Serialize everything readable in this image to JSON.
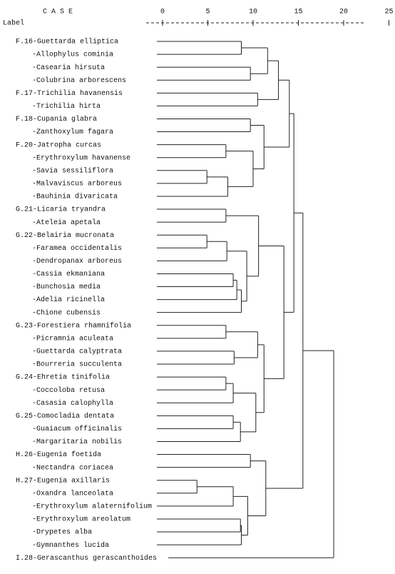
{
  "header": {
    "case": "C A S E",
    "label": "Label"
  },
  "axis": {
    "ticks": [
      0,
      5,
      10,
      15,
      20,
      25
    ]
  },
  "leaves": [
    "F.16-Guettarda elliptica",
    "-Allophylus cominia",
    "-Casearia hirsuta",
    "-Colubrina arborescens",
    "F.17-Trichilia havanensis",
    "-Trichilia hirta",
    "F.18-Cupania glabra",
    "-Zanthoxylum fagara",
    "F.20-Jatropha curcas",
    "-Erythroxylum havanense",
    "-Savia sessiliflora",
    "-Malvaviscus arboreus",
    "-Bauhinia divaricata",
    "G.21-Licaria tryandra",
    "-Ateleia apetala",
    "G.22-Belairia mucronata",
    "-Faramea occidentalis",
    "-Dendropanax arboreus",
    "-Cassia ekmaniana",
    "-Bunchosia media",
    "-Adelia ricinella",
    "-Chione cubensis",
    "G.23-Forestiera rhamnifolia",
    "-Picramnia aculeata",
    "-Guettarda calyptrata",
    "-Bourreria succulenta",
    "G.24-Ehretia tinifolia",
    "-Coccoloba retusa",
    "-Casasia calophylla",
    "G.25-Comocladia dentata",
    "-Guaiacum officinalis",
    "-Margaritaria nobilis",
    "H.26-Eugenia foetida",
    "-Nectandra coriacea",
    "H.27-Eugenia axillaris",
    "-Oxandra lanceolata",
    "-Erythroxylum alaternifolium",
    "-Erythroxylum areolatum",
    "-Drypetes alba",
    "-Gymnanthes lucida",
    "I.28-Gerascanthus gerascanthoides"
  ],
  "merges": [
    {
      "left": 0,
      "right": 1,
      "height": 8.7
    },
    {
      "left": 2,
      "right": 3,
      "height": 9.7
    },
    {
      "left": 41,
      "right": 42,
      "height": 11.6
    },
    {
      "left": 4,
      "right": 5,
      "height": 10.5
    },
    {
      "left": 43,
      "right": 44,
      "height": 12.8
    },
    {
      "left": 6,
      "right": 7,
      "height": 9.7
    },
    {
      "left": 8,
      "right": 9,
      "height": 7
    },
    {
      "left": 10,
      "right": 11,
      "height": 4.9
    },
    {
      "left": 48,
      "right": 12,
      "height": 7.2
    },
    {
      "left": 47,
      "right": 49,
      "height": 10
    },
    {
      "left": 46,
      "right": 50,
      "height": 11.2
    },
    {
      "left": 45,
      "right": 51,
      "height": 14
    },
    {
      "left": 13,
      "right": 14,
      "height": 7
    },
    {
      "left": 15,
      "right": 16,
      "height": 4.9
    },
    {
      "left": 54,
      "right": 17,
      "height": 7.1
    },
    {
      "left": 18,
      "right": 19,
      "height": 7.8
    },
    {
      "left": 56,
      "right": 20,
      "height": 8.2
    },
    {
      "left": 57,
      "right": 21,
      "height": 8.7
    },
    {
      "left": 55,
      "right": 58,
      "height": 9.3
    },
    {
      "left": 53,
      "right": 59,
      "height": 10.6
    },
    {
      "left": 22,
      "right": 23,
      "height": 7
    },
    {
      "left": 24,
      "right": 25,
      "height": 7.9
    },
    {
      "left": 61,
      "right": 62,
      "height": 10.5
    },
    {
      "left": 26,
      "right": 27,
      "height": 7
    },
    {
      "left": 64,
      "right": 28,
      "height": 7.8
    },
    {
      "left": 29,
      "right": 30,
      "height": 7.8
    },
    {
      "left": 66,
      "right": 31,
      "height": 8.6
    },
    {
      "left": 65,
      "right": 67,
      "height": 10.3
    },
    {
      "left": 63,
      "right": 68,
      "height": 11.2
    },
    {
      "left": 60,
      "right": 69,
      "height": 13.4
    },
    {
      "left": 52,
      "right": 70,
      "height": 14.5
    },
    {
      "left": 32,
      "right": 33,
      "height": 9.7
    },
    {
      "left": 34,
      "right": 35,
      "height": 3.8
    },
    {
      "left": 73,
      "right": 36,
      "height": 7.8
    },
    {
      "left": 37,
      "right": 38,
      "height": 8.6
    },
    {
      "left": 75,
      "right": 39,
      "height": 8.7
    },
    {
      "left": 74,
      "right": 76,
      "height": 9.4
    },
    {
      "left": 72,
      "right": 77,
      "height": 11.4
    },
    {
      "left": 71,
      "right": 78,
      "height": 15.5
    },
    {
      "left": 79,
      "right": 40,
      "height": 18.9
    }
  ]
}
